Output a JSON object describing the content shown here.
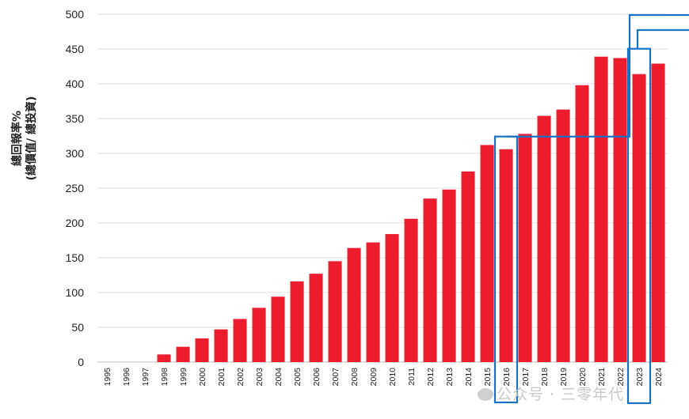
{
  "chart_data": {
    "type": "bar",
    "title": "",
    "xlabel": "",
    "ylabel_line1": "總回報率%",
    "ylabel_line2": "(總價值/ 總投資)",
    "ylim": [
      0,
      500
    ],
    "yticks": [
      0,
      50,
      100,
      150,
      200,
      250,
      300,
      350,
      400,
      450,
      500
    ],
    "grid": true,
    "categories": [
      "1995",
      "1996",
      "1997",
      "1998",
      "1999",
      "2000",
      "2001",
      "2002",
      "2003",
      "2004",
      "2005",
      "2006",
      "2007",
      "2008",
      "2009",
      "2010",
      "2011",
      "2012",
      "2013",
      "2014",
      "2015",
      "2016",
      "2017",
      "2018",
      "2019",
      "2020",
      "2021",
      "2022",
      "2023",
      "2024"
    ],
    "values": [
      0,
      0,
      0,
      11,
      22,
      34,
      47,
      62,
      78,
      94,
      116,
      127,
      145,
      164,
      172,
      184,
      206,
      235,
      248,
      274,
      312,
      306,
      328,
      354,
      363,
      398,
      439,
      437,
      414,
      429
    ],
    "bar_color": "#ed1c2f",
    "annotation_color": "#1a72c4",
    "highlighted_years": [
      "2016",
      "2023"
    ]
  },
  "watermark": {
    "text": "公众号 · 三零年代",
    "icon": "wechat-icon"
  }
}
